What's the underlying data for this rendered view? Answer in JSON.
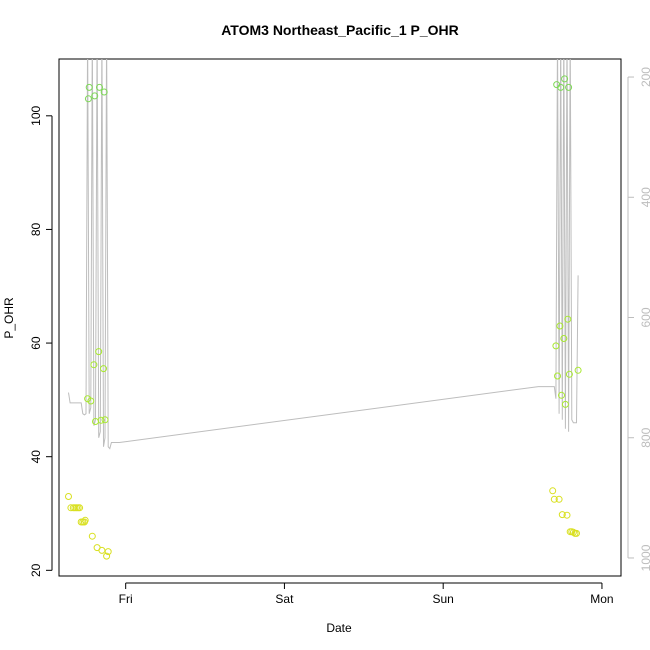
{
  "chart_data": {
    "type": "scatter",
    "title": "ATOM3 Northeast_Pacific_1 P_OHR",
    "xlabel": "Date",
    "ylabel": "P_OHR",
    "x_ticks": [
      {
        "t": 1.0,
        "label": "Fri"
      },
      {
        "t": 2.0,
        "label": "Sat"
      },
      {
        "t": 3.0,
        "label": "Sun"
      },
      {
        "t": 4.0,
        "label": "Mon"
      }
    ],
    "xlim": [
      0.58,
      4.12
    ],
    "ylim": [
      19,
      110
    ],
    "y_ticks": [
      20,
      40,
      60,
      80,
      100
    ],
    "y2_ticks": [
      200,
      400,
      600,
      800,
      1000
    ],
    "y2lim": [
      1030,
      170
    ],
    "y2_reversed": true,
    "colors": {
      "axes": "#000000",
      "secondary_axis": "#bdbdbd",
      "line": "#bdbdbd",
      "point_scale": [
        "#d9e021",
        "#a8e830",
        "#7ed957"
      ]
    },
    "series": [
      {
        "kind": "points",
        "units": "P_OHR",
        "marker": "open-circle",
        "points": [
          [
            0.64,
            33.0
          ],
          [
            0.655,
            31.0
          ],
          [
            0.67,
            31.0
          ],
          [
            0.68,
            31.0
          ],
          [
            0.69,
            31.0
          ],
          [
            0.7,
            31.0
          ],
          [
            0.71,
            31.0
          ],
          [
            0.72,
            28.5
          ],
          [
            0.73,
            28.5
          ],
          [
            0.74,
            28.5
          ],
          [
            0.745,
            28.8
          ],
          [
            0.76,
            50.2
          ],
          [
            0.765,
            103.0
          ],
          [
            0.77,
            105.0
          ],
          [
            0.78,
            49.8
          ],
          [
            0.79,
            26.0
          ],
          [
            0.8,
            56.2
          ],
          [
            0.805,
            103.5
          ],
          [
            0.81,
            46.2
          ],
          [
            0.82,
            24.0
          ],
          [
            0.83,
            58.5
          ],
          [
            0.835,
            105.0
          ],
          [
            0.845,
            46.4
          ],
          [
            0.85,
            23.5
          ],
          [
            0.86,
            55.5
          ],
          [
            0.865,
            104.2
          ],
          [
            0.87,
            46.5
          ],
          [
            0.88,
            22.5
          ],
          [
            0.89,
            23.3
          ],
          [
            3.69,
            34.0
          ],
          [
            3.7,
            32.5
          ],
          [
            3.71,
            59.5
          ],
          [
            3.715,
            105.5
          ],
          [
            3.72,
            54.2
          ],
          [
            3.73,
            32.5
          ],
          [
            3.735,
            63.0
          ],
          [
            3.74,
            105.0
          ],
          [
            3.745,
            50.8
          ],
          [
            3.75,
            29.8
          ],
          [
            3.76,
            60.8
          ],
          [
            3.765,
            106.5
          ],
          [
            3.77,
            49.2
          ],
          [
            3.78,
            29.7
          ],
          [
            3.785,
            64.2
          ],
          [
            3.79,
            105.0
          ],
          [
            3.795,
            54.5
          ],
          [
            3.8,
            26.8
          ],
          [
            3.81,
            26.8
          ],
          [
            3.82,
            26.7
          ],
          [
            3.83,
            26.5
          ],
          [
            3.84,
            26.5
          ],
          [
            3.85,
            55.2
          ]
        ]
      },
      {
        "kind": "line",
        "axis": "secondary",
        "units": "right axis (reversed)",
        "points": [
          [
            0.64,
            725
          ],
          [
            0.65,
            742
          ],
          [
            0.72,
            742
          ],
          [
            0.73,
            760
          ],
          [
            0.74,
            762
          ],
          [
            0.75,
            760
          ],
          [
            0.76,
            120
          ],
          [
            0.77,
            760
          ],
          [
            0.78,
            750
          ],
          [
            0.79,
            120
          ],
          [
            0.8,
            780
          ],
          [
            0.81,
            770
          ],
          [
            0.82,
            120
          ],
          [
            0.83,
            800
          ],
          [
            0.84,
            790
          ],
          [
            0.85,
            120
          ],
          [
            0.86,
            815
          ],
          [
            0.87,
            800
          ],
          [
            0.88,
            120
          ],
          [
            0.89,
            815
          ],
          [
            0.9,
            818
          ],
          [
            0.91,
            808
          ],
          [
            0.96,
            808
          ],
          [
            3.6,
            715
          ],
          [
            3.7,
            715
          ],
          [
            3.71,
            735
          ],
          [
            3.72,
            120
          ],
          [
            3.73,
            760
          ],
          [
            3.74,
            120
          ],
          [
            3.75,
            770
          ],
          [
            3.76,
            120
          ],
          [
            3.77,
            785
          ],
          [
            3.78,
            120
          ],
          [
            3.79,
            790
          ],
          [
            3.8,
            120
          ],
          [
            3.81,
            770
          ],
          [
            3.82,
            775
          ],
          [
            3.84,
            775
          ],
          [
            3.85,
            530
          ]
        ]
      }
    ]
  }
}
